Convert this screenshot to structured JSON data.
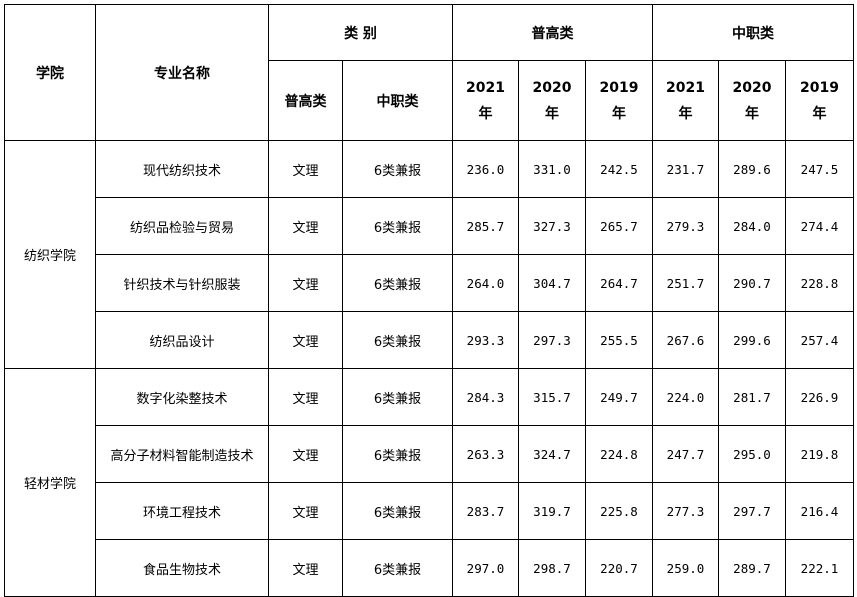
{
  "header": {
    "college": "学院",
    "major": "专业名称",
    "category": "类 别",
    "category_sub": [
      "普高类",
      "中职类"
    ],
    "group_general": "普高类",
    "group_vocational": "中职类",
    "years": [
      {
        "year": "2021",
        "unit": "年"
      },
      {
        "year": "2020",
        "unit": "年"
      },
      {
        "year": "2019",
        "unit": "年"
      }
    ]
  },
  "groups": [
    {
      "college": "纺织学院",
      "rows": [
        {
          "major": "现代纺织技术",
          "general": "文理",
          "vocational": "6类兼报",
          "scores": [
            "236.0",
            "331.0",
            "242.5",
            "231.7",
            "289.6",
            "247.5"
          ]
        },
        {
          "major": "纺织品检验与贸易",
          "general": "文理",
          "vocational": "6类兼报",
          "scores": [
            "285.7",
            "327.3",
            "265.7",
            "279.3",
            "284.0",
            "274.4"
          ]
        },
        {
          "major": "针织技术与针织服装",
          "general": "文理",
          "vocational": "6类兼报",
          "scores": [
            "264.0",
            "304.7",
            "264.7",
            "251.7",
            "290.7",
            "228.8"
          ]
        },
        {
          "major": "纺织品设计",
          "general": "文理",
          "vocational": "6类兼报",
          "scores": [
            "293.3",
            "297.3",
            "255.5",
            "267.6",
            "299.6",
            "257.4"
          ]
        }
      ]
    },
    {
      "college": "轻材学院",
      "rows": [
        {
          "major": "数字化染整技术",
          "general": "文理",
          "vocational": "6类兼报",
          "scores": [
            "284.3",
            "315.7",
            "249.7",
            "224.0",
            "281.7",
            "226.9"
          ]
        },
        {
          "major": "高分子材料智能制造技术",
          "general": "文理",
          "vocational": "6类兼报",
          "scores": [
            "263.3",
            "324.7",
            "224.8",
            "247.7",
            "295.0",
            "219.8"
          ]
        },
        {
          "major": "环境工程技术",
          "general": "文理",
          "vocational": "6类兼报",
          "scores": [
            "283.7",
            "319.7",
            "225.8",
            "277.3",
            "297.7",
            "216.4"
          ]
        },
        {
          "major": "食品生物技术",
          "general": "文理",
          "vocational": "6类兼报",
          "scores": [
            "297.0",
            "298.7",
            "220.7",
            "259.0",
            "289.7",
            "222.1"
          ]
        }
      ]
    }
  ]
}
